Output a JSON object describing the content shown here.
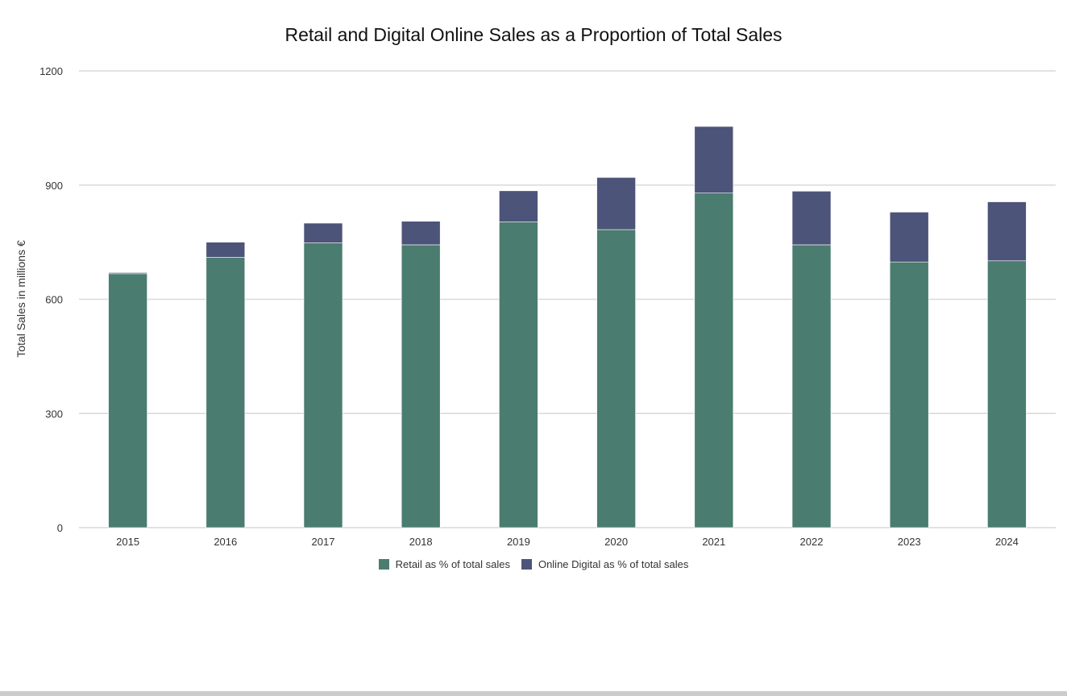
{
  "chart_data": {
    "type": "bar",
    "stacked": true,
    "title": "Retail and Digital Online Sales as a Proportion of Total Sales",
    "xlabel": "",
    "ylabel": "Total Sales in millions €",
    "ylim": [
      0,
      1200
    ],
    "yticks": [
      0,
      300,
      600,
      900,
      1200
    ],
    "grid": true,
    "legend_position": "bottom",
    "categories": [
      "2015",
      "2016",
      "2017",
      "2018",
      "2019",
      "2020",
      "2021",
      "2022",
      "2023",
      "2024"
    ],
    "series": [
      {
        "name": "Retail as % of total sales",
        "color": "#4a7c6f",
        "values": [
          667,
          710,
          748,
          743,
          803,
          783,
          879,
          743,
          698,
          701
        ]
      },
      {
        "name": "Online Digital as % of total sales",
        "color": "#4c5479",
        "values": [
          3,
          40,
          52,
          62,
          82,
          137,
          175,
          141,
          131,
          155
        ]
      }
    ]
  }
}
